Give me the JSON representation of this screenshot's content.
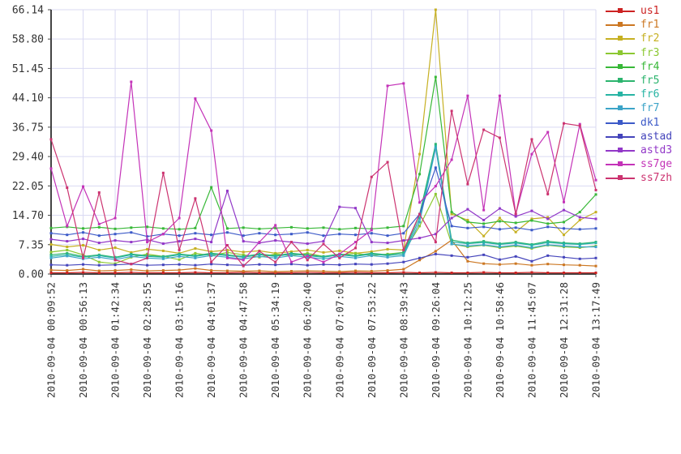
{
  "chart_data": {
    "type": "line",
    "title": "",
    "grid": true,
    "legend_position": "right-outside",
    "ylim": [
      0,
      66.14
    ],
    "y_tick_labels": [
      "0.00",
      "7.35",
      "14.70",
      "22.05",
      "29.40",
      "36.75",
      "44.10",
      "51.45",
      "58.80",
      "66.14"
    ],
    "y_tick_values": [
      0,
      7.35,
      14.7,
      22.05,
      29.4,
      36.75,
      44.1,
      51.45,
      58.8,
      66.14
    ],
    "x_tick_labels": [
      "2010-09-04 00:09:52",
      "2010-09-04 00:56:13",
      "2010-09-04 01:42:34",
      "2010-09-04 02:28:55",
      "2010-09-04 03:15:16",
      "2010-09-04 04:01:37",
      "2010-09-04 04:47:58",
      "2010-09-04 05:34:19",
      "2010-09-04 06:20:40",
      "2010-09-04 07:07:01",
      "2010-09-04 07:53:22",
      "2010-09-04 08:39:43",
      "2010-09-04 09:26:04",
      "2010-09-04 10:12:25",
      "2010-09-04 10:58:46",
      "2010-09-04 11:45:07",
      "2010-09-04 12:31:28",
      "2010-09-04 13:17:49"
    ],
    "samples_per_tick_interval": 2,
    "series": [
      {
        "name": "us1",
        "color": "#cc2222",
        "values": [
          0.3,
          0.3,
          0.4,
          0.3,
          0.3,
          0.4,
          0.3,
          0.3,
          0.3,
          0.4,
          0.3,
          0.3,
          0.4,
          0.3,
          0.3,
          0.3,
          0.4,
          0.3,
          0.3,
          0.4,
          0.3,
          0.3,
          0.4,
          0.3,
          0.4,
          0.3,
          0.3,
          0.4,
          0.3,
          0.3,
          0.4,
          0.3,
          0.3,
          0.3,
          0.3
        ]
      },
      {
        "name": "fr1",
        "color": "#cc7722",
        "values": [
          1.0,
          0.9,
          1.2,
          0.8,
          0.9,
          1.1,
          0.8,
          0.9,
          1.0,
          1.4,
          0.9,
          0.8,
          0.7,
          0.8,
          0.6,
          0.7,
          0.8,
          0.7,
          0.6,
          0.8,
          0.7,
          0.9,
          1.2,
          3.5,
          5.7,
          8.5,
          3.2,
          2.6,
          2.4,
          2.6,
          2.2,
          2.5,
          2.3,
          2.2,
          2.0
        ]
      },
      {
        "name": "fr2",
        "color": "#c6b022",
        "values": [
          7.4,
          6.8,
          7.2,
          6.0,
          6.6,
          5.4,
          6.2,
          5.8,
          5.2,
          6.4,
          5.6,
          6.0,
          5.5,
          5.8,
          5.2,
          5.6,
          6.0,
          5.4,
          5.8,
          5.2,
          5.6,
          6.2,
          6.0,
          30.0,
          66.14,
          15.0,
          13.5,
          9.5,
          14.0,
          10.5,
          13.8,
          14.2,
          9.8,
          13.5,
          15.5
        ]
      },
      {
        "name": "fr3",
        "color": "#8cc832",
        "values": [
          5.5,
          6.0,
          4.8,
          3.0,
          2.6,
          4.2,
          5.0,
          4.4,
          3.6,
          5.2,
          4.6,
          5.4,
          4.8,
          4.2,
          5.0,
          4.6,
          5.2,
          4.4,
          4.8,
          5.2,
          4.6,
          5.0,
          5.4,
          12.0,
          20.0,
          7.5,
          6.8,
          7.2,
          6.6,
          7.0,
          6.4,
          7.2,
          6.8,
          6.6,
          7.0
        ]
      },
      {
        "name": "fr4",
        "color": "#38b838",
        "values": [
          11.5,
          11.8,
          11.4,
          11.7,
          11.3,
          11.6,
          11.8,
          11.4,
          11.2,
          11.5,
          21.7,
          11.4,
          11.6,
          11.3,
          11.5,
          11.7,
          11.4,
          11.6,
          11.2,
          11.5,
          11.3,
          11.6,
          12.0,
          25.0,
          49.3,
          15.5,
          13.0,
          12.6,
          13.2,
          12.8,
          13.4,
          12.6,
          13.0,
          15.5,
          19.9
        ]
      },
      {
        "name": "fr5",
        "color": "#2cb46e",
        "values": [
          4.8,
          5.2,
          4.4,
          4.8,
          4.2,
          5.0,
          4.6,
          4.4,
          5.0,
          4.6,
          5.2,
          4.8,
          4.4,
          5.0,
          4.6,
          5.2,
          4.8,
          4.4,
          5.0,
          4.6,
          5.2,
          4.8,
          5.4,
          15.0,
          32.5,
          8.5,
          7.8,
          8.2,
          7.6,
          8.0,
          7.4,
          8.2,
          7.8,
          7.6,
          8.0
        ]
      },
      {
        "name": "fr6",
        "color": "#28b4a4",
        "values": [
          4.4,
          4.8,
          4.2,
          4.6,
          4.0,
          4.8,
          4.4,
          4.2,
          4.8,
          4.4,
          5.0,
          4.6,
          4.2,
          4.8,
          4.4,
          5.0,
          4.6,
          4.2,
          4.8,
          4.4,
          5.0,
          4.6,
          5.0,
          14.0,
          32.0,
          8.0,
          7.6,
          7.9,
          7.4,
          7.8,
          7.2,
          7.9,
          7.6,
          7.4,
          7.8
        ]
      },
      {
        "name": "fr7",
        "color": "#3ca4c8",
        "values": [
          4.0,
          4.5,
          3.8,
          4.2,
          3.6,
          4.4,
          4.0,
          3.8,
          4.4,
          4.0,
          4.6,
          4.2,
          3.8,
          4.4,
          4.0,
          4.6,
          4.2,
          3.8,
          4.4,
          4.0,
          4.6,
          4.2,
          4.6,
          13.0,
          31.5,
          7.5,
          7.0,
          7.3,
          6.8,
          7.2,
          6.6,
          7.3,
          7.0,
          6.8,
          6.8
        ]
      },
      {
        "name": "dk1",
        "color": "#3c5ac8",
        "values": [
          10.2,
          9.8,
          10.4,
          9.6,
          10.0,
          10.4,
          9.4,
          10.0,
          9.6,
          10.2,
          9.8,
          10.4,
          9.6,
          10.2,
          9.8,
          10.0,
          10.4,
          9.6,
          10.0,
          9.8,
          10.2,
          9.6,
          10.2,
          15.0,
          26.6,
          12.0,
          11.5,
          11.8,
          11.2,
          11.6,
          11.0,
          11.8,
          11.4,
          11.2,
          11.4
        ]
      },
      {
        "name": "astad",
        "color": "#4444bb",
        "values": [
          2.3,
          2.2,
          2.4,
          2.2,
          2.3,
          2.5,
          2.2,
          2.3,
          2.4,
          2.2,
          2.5,
          2.3,
          2.2,
          2.4,
          2.3,
          2.5,
          2.2,
          2.4,
          2.3,
          2.5,
          2.4,
          2.6,
          3.0,
          4.0,
          5.0,
          4.6,
          4.2,
          4.8,
          3.6,
          4.4,
          3.2,
          4.6,
          4.2,
          3.8,
          4.0
        ]
      },
      {
        "name": "astd3",
        "color": "#9238c8",
        "values": [
          8.7,
          8.2,
          8.8,
          7.8,
          8.4,
          8.0,
          8.6,
          7.6,
          8.2,
          8.8,
          8.0,
          20.8,
          8.2,
          7.8,
          8.4,
          8.0,
          7.6,
          8.2,
          16.8,
          16.5,
          8.0,
          7.8,
          8.4,
          9.0,
          10.0,
          14.0,
          16.2,
          13.5,
          16.4,
          14.4,
          15.8,
          13.8,
          16.0,
          14.2,
          13.8
        ]
      },
      {
        "name": "ss7ge",
        "color": "#c433b8",
        "values": [
          26.4,
          12.0,
          21.9,
          12.5,
          14.0,
          48.1,
          8.0,
          10.0,
          14.0,
          43.9,
          35.9,
          4.0,
          3.5,
          8.0,
          12.2,
          3.0,
          4.5,
          3.0,
          5.0,
          8.0,
          11.0,
          47.1,
          47.7,
          17.9,
          22.0,
          28.6,
          44.6,
          16.0,
          44.6,
          15.0,
          30.0,
          35.5,
          18.0,
          37.5,
          23.5
        ]
      },
      {
        "name": "ss7zh",
        "color": "#cc3370",
        "values": [
          33.7,
          21.6,
          4.0,
          20.4,
          3.5,
          2.5,
          4.0,
          25.3,
          6.0,
          18.9,
          3.0,
          7.2,
          2.0,
          5.7,
          3.0,
          8.0,
          3.5,
          7.5,
          4.0,
          6.5,
          24.3,
          28.0,
          6.0,
          15.0,
          8.0,
          40.8,
          22.5,
          36.1,
          34.1,
          15.0,
          33.7,
          20.0,
          37.7,
          37.1,
          21.0
        ]
      }
    ],
    "colors": {
      "grid": "#d9d9f2",
      "axis": "#444444",
      "tick_text": "#333333",
      "background": "#ffffff"
    }
  }
}
